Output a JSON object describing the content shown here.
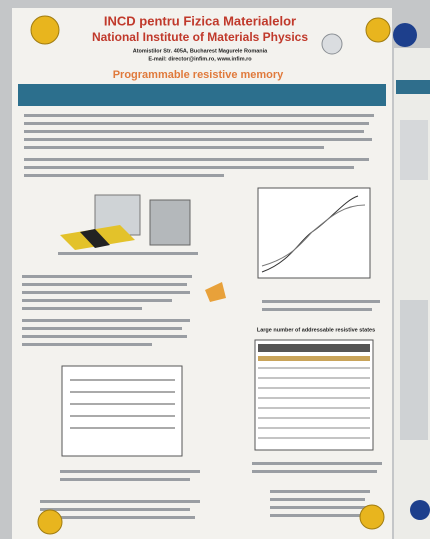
{
  "header": {
    "institute_ro": "INCD pentru Fizica Materialelor",
    "institute_en": "National Institute of Materials Physics",
    "address": "Atomistilor Str. 405A, Bucharest Magurele Romania",
    "contact": "E-mail: director@infim.ro, www.infim.ro"
  },
  "title": "Programmable resistive memory",
  "figures": {
    "states_title": "Large number of addressable resistive states"
  }
}
